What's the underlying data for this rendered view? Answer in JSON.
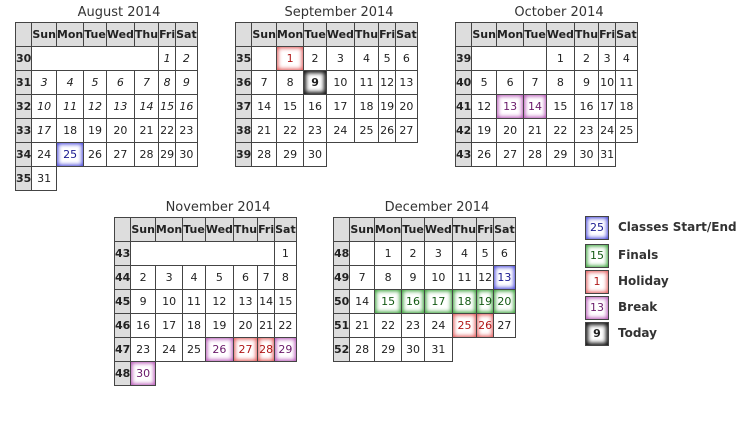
{
  "weekday_headers": [
    "Sun",
    "Mon",
    "Tue",
    "Wed",
    "Thu",
    "Fri",
    "Sat"
  ],
  "months": [
    {
      "title": "August 2014",
      "rows": [
        {
          "week": "30",
          "cells": [
            "",
            "",
            "",
            "",
            "",
            "1",
            "2"
          ],
          "prev": [
            5,
            6
          ]
        },
        {
          "week": "31",
          "cells": [
            "3",
            "4",
            "5",
            "6",
            "7",
            "8",
            "9"
          ],
          "prev": [
            0,
            1,
            2,
            3,
            4,
            5,
            6
          ]
        },
        {
          "week": "32",
          "cells": [
            "10",
            "11",
            "12",
            "13",
            "14",
            "15",
            "16"
          ],
          "prev": [
            0,
            1,
            2,
            3,
            4,
            5,
            6
          ]
        },
        {
          "week": "33",
          "cells": [
            "17",
            "18",
            "19",
            "20",
            "21",
            "22",
            "23"
          ],
          "prev": [
            0
          ]
        },
        {
          "week": "34",
          "cells": [
            "24",
            "25",
            "26",
            "27",
            "28",
            "29",
            "30"
          ],
          "marks": {
            "1": "class"
          }
        },
        {
          "week": "35",
          "cells": [
            "31"
          ]
        }
      ]
    },
    {
      "title": "September 2014",
      "rows": [
        {
          "week": "35",
          "cells": [
            "",
            "1",
            "2",
            "3",
            "4",
            "5",
            "6"
          ],
          "marks": {
            "1": "holiday"
          }
        },
        {
          "week": "36",
          "cells": [
            "7",
            "8",
            "9",
            "10",
            "11",
            "12",
            "13"
          ],
          "marks": {
            "2": "today"
          }
        },
        {
          "week": "37",
          "cells": [
            "14",
            "15",
            "16",
            "17",
            "18",
            "19",
            "20"
          ]
        },
        {
          "week": "38",
          "cells": [
            "21",
            "22",
            "23",
            "24",
            "25",
            "26",
            "27"
          ]
        },
        {
          "week": "39",
          "cells": [
            "28",
            "29",
            "30"
          ]
        }
      ]
    },
    {
      "title": "October 2014",
      "rows": [
        {
          "week": "39",
          "cells": [
            "",
            "",
            "",
            "1",
            "2",
            "3",
            "4"
          ]
        },
        {
          "week": "40",
          "cells": [
            "5",
            "6",
            "7",
            "8",
            "9",
            "10",
            "11"
          ]
        },
        {
          "week": "41",
          "cells": [
            "12",
            "13",
            "14",
            "15",
            "16",
            "17",
            "18"
          ],
          "marks": {
            "1": "break",
            "2": "break"
          }
        },
        {
          "week": "42",
          "cells": [
            "19",
            "20",
            "21",
            "22",
            "23",
            "24",
            "25"
          ]
        },
        {
          "week": "43",
          "cells": [
            "26",
            "27",
            "28",
            "29",
            "30",
            "31"
          ]
        }
      ]
    },
    {
      "title": "November 2014",
      "rows": [
        {
          "week": "43",
          "cells": [
            "",
            "",
            "",
            "",
            "",
            "",
            "1"
          ]
        },
        {
          "week": "44",
          "cells": [
            "2",
            "3",
            "4",
            "5",
            "6",
            "7",
            "8"
          ]
        },
        {
          "week": "45",
          "cells": [
            "9",
            "10",
            "11",
            "12",
            "13",
            "14",
            "15"
          ]
        },
        {
          "week": "46",
          "cells": [
            "16",
            "17",
            "18",
            "19",
            "20",
            "21",
            "22"
          ]
        },
        {
          "week": "47",
          "cells": [
            "23",
            "24",
            "25",
            "26",
            "27",
            "28",
            "29"
          ],
          "marks": {
            "3": "break",
            "4": "holiday",
            "5": "holiday",
            "6": "break"
          }
        },
        {
          "week": "48",
          "cells": [
            "30"
          ],
          "marks": {
            "0": "break"
          }
        }
      ]
    },
    {
      "title": "December 2014",
      "rows": [
        {
          "week": "48",
          "cells": [
            "",
            "1",
            "2",
            "3",
            "4",
            "5",
            "6"
          ]
        },
        {
          "week": "49",
          "cells": [
            "7",
            "8",
            "9",
            "10",
            "11",
            "12",
            "13"
          ],
          "marks": {
            "6": "class"
          }
        },
        {
          "week": "50",
          "cells": [
            "14",
            "15",
            "16",
            "17",
            "18",
            "19",
            "20"
          ],
          "marks": {
            "1": "final",
            "2": "final",
            "3": "final",
            "4": "final",
            "5": "final",
            "6": "final"
          }
        },
        {
          "week": "51",
          "cells": [
            "21",
            "22",
            "23",
            "24",
            "25",
            "26",
            "27"
          ],
          "marks": {
            "4": "holiday",
            "5": "holiday"
          }
        },
        {
          "week": "52",
          "cells": [
            "28",
            "29",
            "30",
            "31"
          ]
        }
      ]
    }
  ],
  "legend": [
    {
      "sample": "25",
      "label": "Classes Start/End",
      "kind": "class"
    },
    {
      "sample": "15",
      "label": "Finals",
      "kind": "final"
    },
    {
      "sample": "1",
      "label": "Holiday",
      "kind": "holiday"
    },
    {
      "sample": "13",
      "label": "Break",
      "kind": "break"
    },
    {
      "sample": "9",
      "label": "Today",
      "kind": "today"
    }
  ]
}
